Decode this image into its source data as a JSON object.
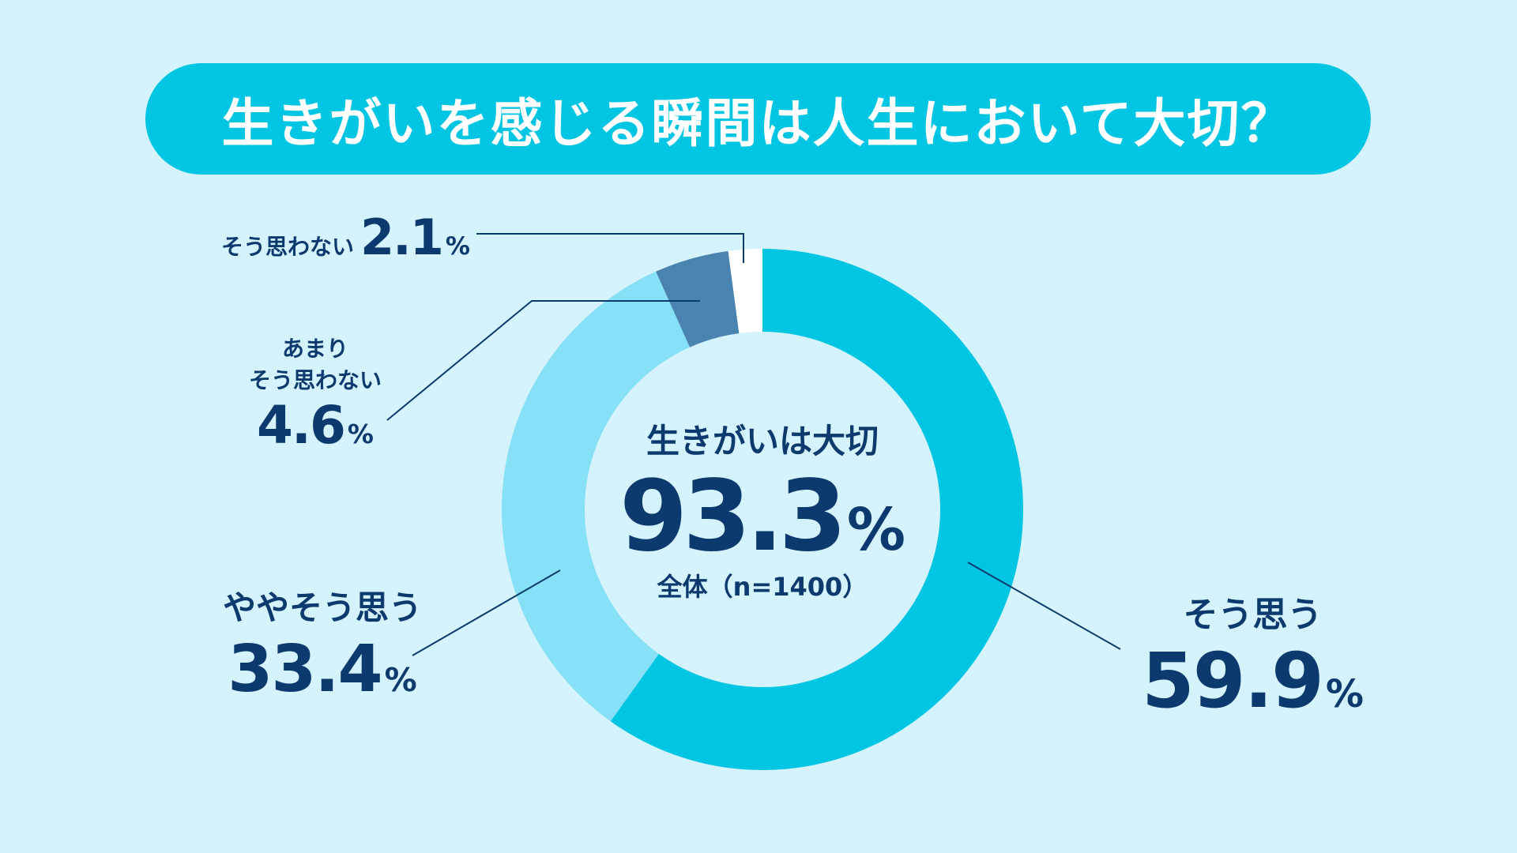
{
  "title": "生きがいを感じる瞬間は人生において大切？",
  "center": {
    "label": "生きがいは大切",
    "value": "93.3",
    "unit": "%",
    "note": "全体（n=1400）"
  },
  "colors": {
    "background": "#d5f3fd",
    "title_bg": "#00c5e3",
    "text": "#0d3a6e"
  },
  "chart_data": {
    "type": "pie",
    "style": "donut",
    "categories": [
      "そう思う",
      "ややそう思う",
      "あまりそう思わない",
      "そう思わない"
    ],
    "values": [
      59.9,
      33.4,
      4.6,
      2.1
    ],
    "colors": [
      "#00c5e3",
      "#86e0f6",
      "#4a82b0",
      "#ffffff"
    ],
    "labels": [
      {
        "name": "そう思う",
        "value": "59.9",
        "unit": "%"
      },
      {
        "name": "ややそう思う",
        "value": "33.4",
        "unit": "%"
      },
      {
        "name_line1": "あまり",
        "name_line2": "そう思わない",
        "value": "4.6",
        "unit": "%"
      },
      {
        "name": "そう思わない",
        "value": "2.1",
        "unit": "%"
      }
    ]
  }
}
